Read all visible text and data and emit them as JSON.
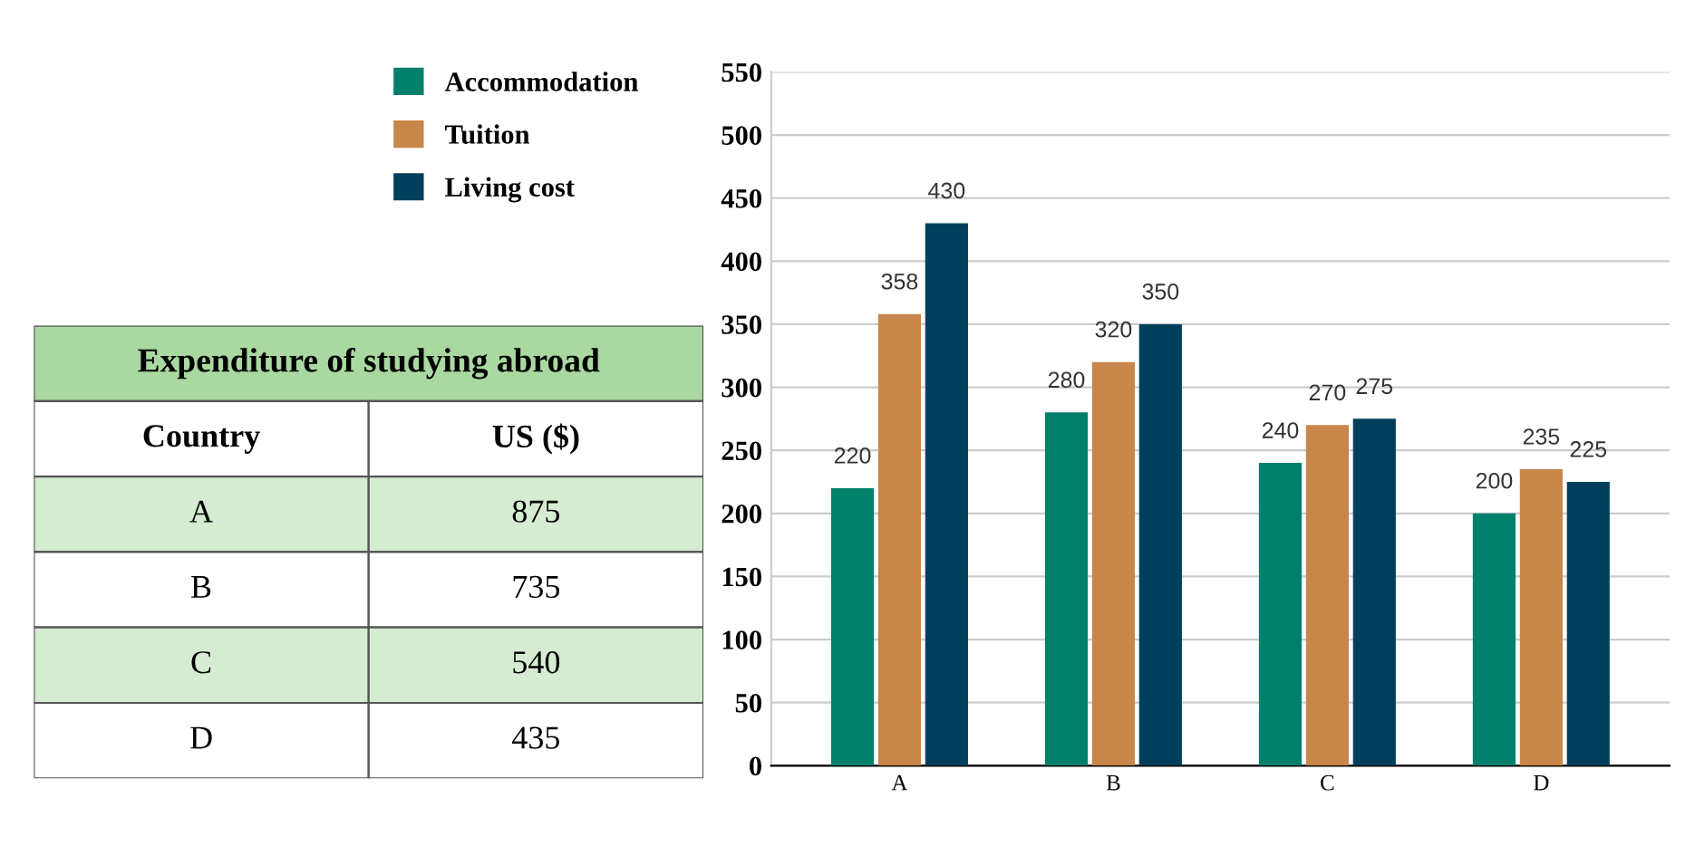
{
  "chart_data": [
    {
      "type": "other",
      "title": "Expenditure of studying abroad",
      "xlabel": "Country",
      "ylabel": "US ($)",
      "categories": [
        "A",
        "B",
        "C",
        "D"
      ],
      "values": [
        875,
        735,
        540,
        435
      ],
      "colors": [
        "#d6ecd2",
        "#ffffff",
        "#d6ecd2",
        "#ffffff"
      ],
      "color": "#a9d9a0",
      "data_labels": true
    },
    {
      "type": "bar",
      "categories": [
        "A",
        "B",
        "C",
        "D"
      ],
      "series": [
        {
          "name": "Accommodation",
          "color": "#00806b",
          "values": [
            220,
            280,
            240,
            200
          ]
        },
        {
          "name": "Tuition",
          "color": "#c8864a",
          "values": [
            358,
            320,
            270,
            235
          ]
        },
        {
          "name": "Living cost",
          "color": "#003f5c",
          "values": [
            430,
            350,
            275,
            225
          ]
        }
      ],
      "ylim": [
        0,
        550
      ],
      "yticks": [
        0,
        50,
        100,
        150,
        200,
        250,
        300,
        350,
        400,
        450,
        500,
        550
      ],
      "grid": "y",
      "data_labels": true,
      "legend": "top left"
    }
  ]
}
